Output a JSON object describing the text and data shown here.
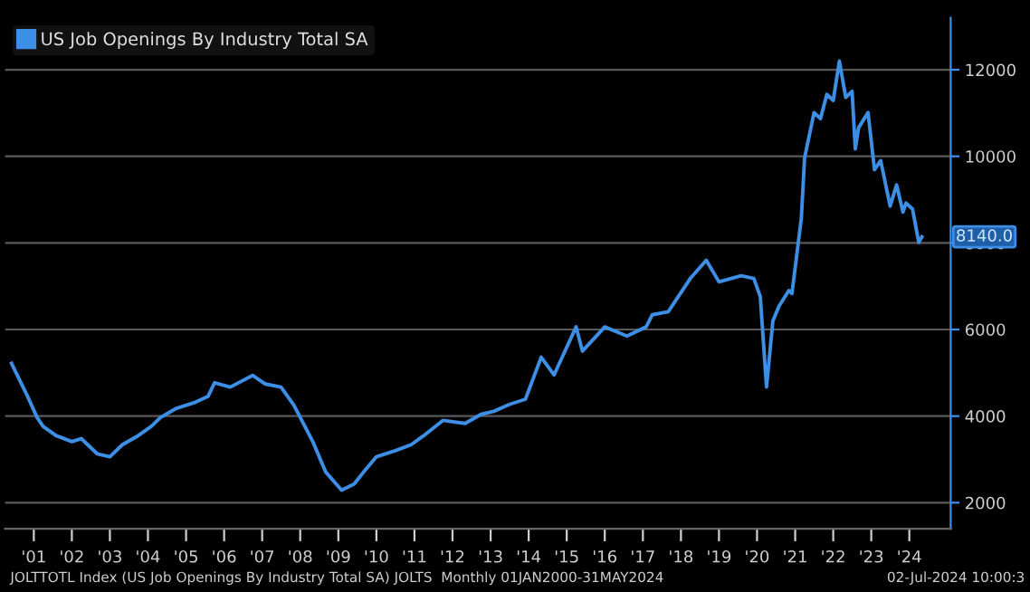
{
  "chart_data": {
    "type": "line",
    "x": [
      "2000-06",
      "2000-11",
      "2001-02",
      "2001-04",
      "2001-08",
      "2002-01",
      "2002-04",
      "2002-09",
      "2003-01",
      "2003-05",
      "2003-10",
      "2004-02",
      "2004-05",
      "2004-10",
      "2005-04",
      "2005-08",
      "2005-10",
      "2006-03",
      "2006-10",
      "2007-02",
      "2007-07",
      "2007-11",
      "2008-05",
      "2008-09",
      "2009-02",
      "2009-06",
      "2009-09",
      "2010-01",
      "2010-07",
      "2010-12",
      "2011-04",
      "2011-10",
      "2012-05",
      "2012-10",
      "2013-02",
      "2013-07",
      "2013-12",
      "2014-05",
      "2014-09",
      "2015-04",
      "2015-06",
      "2016-01",
      "2016-08",
      "2017-02",
      "2017-04",
      "2017-09",
      "2018-04",
      "2018-09",
      "2019-01",
      "2019-08",
      "2019-12",
      "2020-02",
      "2020-04",
      "2020-06",
      "2020-08",
      "2020-11",
      "2020-12",
      "2021-03",
      "2021-04",
      "2021-07",
      "2021-09",
      "2021-11",
      "2022-01",
      "2022-03",
      "2022-05",
      "2022-07",
      "2022-08",
      "2022-09",
      "2022-12",
      "2023-02",
      "2023-04",
      "2023-07",
      "2023-09",
      "2023-11",
      "2023-12",
      "2024-02",
      "2024-04",
      "2024-05"
    ],
    "series": [
      {
        "name": "US Job Openings By Industry Total SA",
        "color": "#3d8fe6",
        "values": [
          5220,
          4460,
          3970,
          3760,
          3550,
          3410,
          3480,
          3130,
          3060,
          3340,
          3550,
          3760,
          3970,
          4180,
          4320,
          4460,
          4770,
          4670,
          4940,
          4740,
          4670,
          4250,
          3410,
          2710,
          2290,
          2430,
          2710,
          3060,
          3200,
          3340,
          3550,
          3900,
          3830,
          4040,
          4110,
          4270,
          4390,
          5360,
          4950,
          6060,
          5500,
          6060,
          5850,
          6060,
          6340,
          6410,
          7180,
          7600,
          7100,
          7240,
          7180,
          6760,
          4670,
          6200,
          6550,
          6900,
          6830,
          8570,
          9960,
          11010,
          10870,
          11430,
          11290,
          12200,
          11360,
          11500,
          10170,
          10660,
          11010,
          9690,
          9900,
          8850,
          9340,
          8710,
          8920,
          8780,
          8010,
          8140
        ]
      }
    ],
    "xlim": [
      "2000-04",
      "2025-02"
    ],
    "xticks": [
      {
        "value": "2001-01",
        "label": "'01"
      },
      {
        "value": "2002-01",
        "label": "'02"
      },
      {
        "value": "2003-01",
        "label": "'03"
      },
      {
        "value": "2004-01",
        "label": "'04"
      },
      {
        "value": "2005-01",
        "label": "'05"
      },
      {
        "value": "2006-01",
        "label": "'06"
      },
      {
        "value": "2007-01",
        "label": "'07"
      },
      {
        "value": "2008-01",
        "label": "'08"
      },
      {
        "value": "2009-01",
        "label": "'09"
      },
      {
        "value": "2010-01",
        "label": "'10"
      },
      {
        "value": "2011-01",
        "label": "'11"
      },
      {
        "value": "2012-01",
        "label": "'12"
      },
      {
        "value": "2013-01",
        "label": "'13"
      },
      {
        "value": "2014-01",
        "label": "'14"
      },
      {
        "value": "2015-01",
        "label": "'15"
      },
      {
        "value": "2016-01",
        "label": "'16"
      },
      {
        "value": "2017-01",
        "label": "'17"
      },
      {
        "value": "2018-01",
        "label": "'18"
      },
      {
        "value": "2019-01",
        "label": "'19"
      },
      {
        "value": "2020-01",
        "label": "'20"
      },
      {
        "value": "2021-01",
        "label": "'21"
      },
      {
        "value": "2022-01",
        "label": "'22"
      },
      {
        "value": "2023-01",
        "label": "'23"
      },
      {
        "value": "2024-01",
        "label": "'24"
      }
    ],
    "ylim": [
      1400,
      13200
    ],
    "yticks": [
      2000,
      4000,
      6000,
      8000,
      10000,
      12000
    ],
    "grid": "y",
    "legend": "top left",
    "marker": "none",
    "line_style": "solid",
    "annotations": [
      {
        "text": "8140.0",
        "x": "2024-05",
        "y": 8140
      },
      "JOLTTOTL Index (US Job Openings By Industry Total SA) JOLTS  Monthly 01JAN2000-31MAY2024",
      "02-Jul-2024 10:00:3"
    ]
  }
}
